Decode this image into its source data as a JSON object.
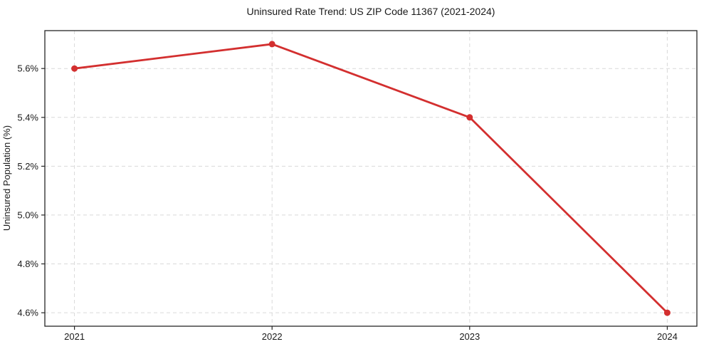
{
  "figure": {
    "background": "#ffffff"
  },
  "chart_data": {
    "type": "line",
    "title": "Uninsured Rate Trend: US ZIP Code 11367 (2021-2024)",
    "categories": [
      "2021",
      "2022",
      "2023",
      "2024"
    ],
    "values": [
      5.6,
      5.7,
      5.4,
      4.6
    ],
    "xlabel": "",
    "ylabel": "Uninsured Population (%)",
    "ylim": [
      4.545,
      5.755
    ],
    "yticks": [
      4.6,
      4.8,
      5.0,
      5.2,
      5.4,
      5.6
    ],
    "ytick_suffix": "%",
    "grid": true,
    "grid_style": "dashed",
    "legend": false,
    "line_color": "#d32f2f",
    "marker": "circle",
    "grid_color": "#d9d9d9",
    "axis_color": "#262626"
  }
}
